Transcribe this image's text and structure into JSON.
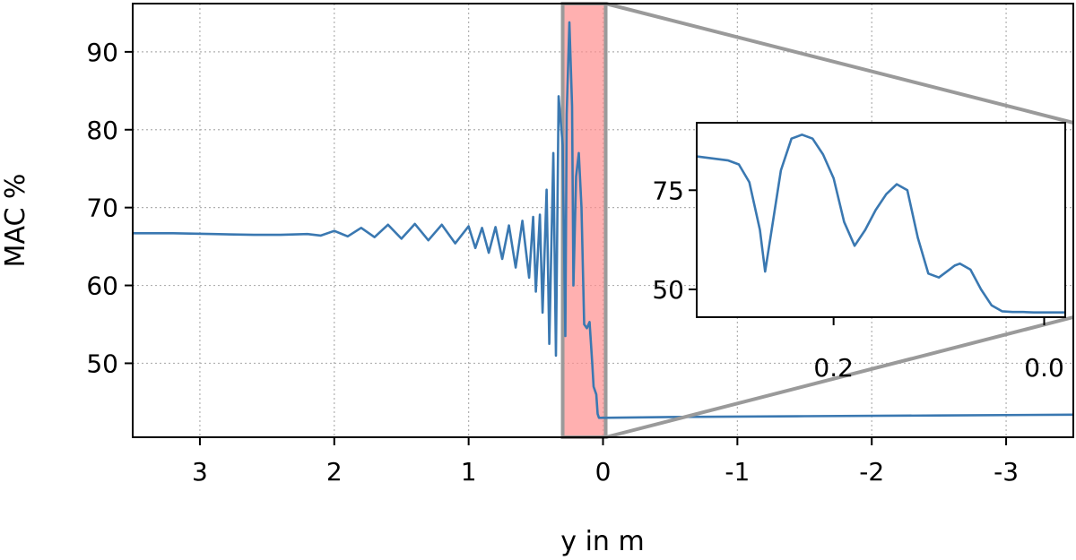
{
  "chart_data": {
    "type": "line",
    "xlabel": "y in m",
    "ylabel": "MAC %",
    "xlim": [
      3.5,
      -3.5
    ],
    "ylim": [
      40.5,
      96.2
    ],
    "x_reversed": true,
    "xticks": [
      3,
      2,
      1,
      0,
      -1,
      -2,
      -3
    ],
    "xtick_labels": [
      "3",
      "2",
      "1",
      "0",
      "-1",
      "-2",
      "-3"
    ],
    "yticks": [
      50,
      60,
      70,
      80,
      90
    ],
    "ytick_labels": [
      "50",
      "60",
      "70",
      "80",
      "90"
    ],
    "grid": true,
    "series_color": "#3a78b1",
    "series": [
      {
        "x": [
          3.5,
          3.2,
          2.9,
          2.6,
          2.4,
          2.2,
          2.1,
          2.0,
          1.9,
          1.8,
          1.7,
          1.6,
          1.5,
          1.4,
          1.3,
          1.2,
          1.1,
          1.0,
          0.95,
          0.9,
          0.85,
          0.8,
          0.75,
          0.7,
          0.65,
          0.6,
          0.55,
          0.52,
          0.5,
          0.47,
          0.45,
          0.42,
          0.4,
          0.37,
          0.35,
          0.33,
          0.3,
          0.28,
          0.27,
          0.25,
          0.23,
          0.22,
          0.2,
          0.18,
          0.16,
          0.14,
          0.12,
          0.1,
          0.08,
          0.07,
          0.05,
          0.04,
          0.03,
          0.02,
          0.01,
          0.0,
          -0.5,
          -1.5,
          -2.5,
          -3.5
        ],
        "values": [
          66.7,
          66.7,
          66.6,
          66.5,
          66.5,
          66.6,
          66.4,
          67.0,
          66.3,
          67.4,
          66.2,
          67.8,
          66.0,
          67.9,
          65.8,
          67.8,
          65.4,
          67.6,
          64.8,
          67.4,
          64.2,
          67.5,
          63.4,
          67.7,
          62.3,
          68.3,
          61.0,
          68.8,
          59.2,
          69.1,
          56.5,
          72.3,
          52.5,
          77.0,
          51.0,
          84.3,
          78.0,
          53.5,
          82.0,
          93.8,
          83.0,
          60.0,
          74.0,
          77.0,
          70.0,
          55.0,
          54.5,
          55.3,
          50.0,
          47.0,
          46.0,
          43.5,
          43.0,
          43.0,
          43.0,
          43.0,
          43.1,
          43.2,
          43.3,
          43.4
        ]
      }
    ],
    "highlight_region": {
      "x_range": [
        0.3,
        -0.02
      ],
      "color": "#ff8f8f"
    },
    "inset": {
      "xlim": [
        0.33,
        -0.02
      ],
      "ylim": [
        43.0,
        92.0
      ],
      "xticks": [
        0.2,
        0.0
      ],
      "xtick_labels": [
        "0.2",
        "0.0"
      ],
      "yticks": [
        50,
        75
      ],
      "ytick_labels": [
        "50",
        "75"
      ],
      "x": [
        0.33,
        0.3,
        0.29,
        0.28,
        0.27,
        0.265,
        0.26,
        0.25,
        0.24,
        0.23,
        0.22,
        0.21,
        0.2,
        0.19,
        0.18,
        0.17,
        0.16,
        0.15,
        0.14,
        0.13,
        0.12,
        0.11,
        0.1,
        0.09,
        0.085,
        0.08,
        0.07,
        0.06,
        0.05,
        0.04,
        0.03,
        0.02,
        0.01,
        0.0,
        -0.02
      ],
      "values": [
        83.5,
        82.5,
        81.5,
        77.0,
        65.0,
        54.5,
        63.0,
        80.0,
        88.0,
        89.0,
        88.0,
        84.0,
        78.0,
        67.0,
        61.0,
        65.0,
        70.0,
        74.0,
        76.5,
        75.0,
        63.0,
        54.0,
        53.0,
        55.0,
        56.0,
        56.5,
        55.0,
        50.0,
        46.0,
        44.5,
        44.3,
        44.3,
        44.2,
        44.2,
        44.2
      ]
    }
  }
}
